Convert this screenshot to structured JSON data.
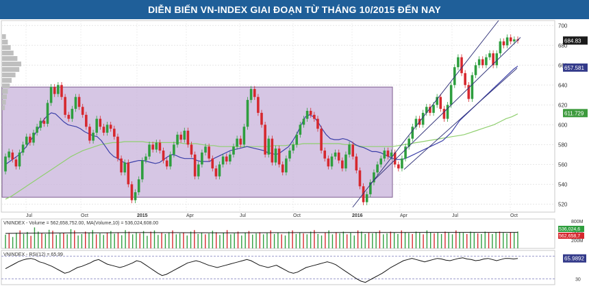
{
  "title": "DIỄN BIẾN VN-INDEX GIAI ĐOẠN TỪ THÁNG 10/2015 ĐẾN NAY",
  "colors": {
    "title_bg": "#1f5f99",
    "up": "#2e9e3e",
    "down": "#d6282e",
    "ma_fast": "#3b3fa8",
    "ma_slow": "#8fcf6e",
    "box_fill": "#cbb6dc",
    "channel": "#33357a",
    "price_badge": "#1b1b1b",
    "ma_badge": "#333a8a",
    "ma2_badge": "#3d9a3d"
  },
  "chart_data": [
    {
      "type": "candlestick",
      "x_tick_labels": [
        "Jul",
        "Oct",
        "2015",
        "Apr",
        "Jul",
        "Oct",
        "2016",
        "Apr",
        "Jul",
        "Oct"
      ],
      "y_tick_labels": [
        "520",
        "540",
        "560",
        "580",
        "600",
        "620",
        "640",
        "660",
        "680",
        "700"
      ],
      "ylim": [
        512,
        705
      ],
      "candles": [
        {
          "o": 553,
          "c": 568
        },
        {
          "o": 567,
          "c": 573
        },
        {
          "o": 572,
          "c": 565
        },
        {
          "o": 565,
          "c": 558
        },
        {
          "o": 558,
          "c": 572
        },
        {
          "o": 572,
          "c": 580
        },
        {
          "o": 580,
          "c": 588
        },
        {
          "o": 588,
          "c": 582
        },
        {
          "o": 582,
          "c": 592
        },
        {
          "o": 592,
          "c": 598
        },
        {
          "o": 597,
          "c": 604
        },
        {
          "o": 604,
          "c": 601
        },
        {
          "o": 601,
          "c": 622
        },
        {
          "o": 622,
          "c": 638
        },
        {
          "o": 638,
          "c": 631
        },
        {
          "o": 631,
          "c": 640
        },
        {
          "o": 640,
          "c": 628
        },
        {
          "o": 628,
          "c": 610
        },
        {
          "o": 610,
          "c": 606
        },
        {
          "o": 606,
          "c": 616
        },
        {
          "o": 616,
          "c": 628
        },
        {
          "o": 628,
          "c": 618
        },
        {
          "o": 618,
          "c": 610
        },
        {
          "o": 610,
          "c": 598
        },
        {
          "o": 598,
          "c": 584
        },
        {
          "o": 584,
          "c": 592
        },
        {
          "o": 592,
          "c": 606
        },
        {
          "o": 606,
          "c": 598
        },
        {
          "o": 598,
          "c": 592
        },
        {
          "o": 592,
          "c": 600
        },
        {
          "o": 600,
          "c": 596
        },
        {
          "o": 596,
          "c": 588
        },
        {
          "o": 588,
          "c": 566
        },
        {
          "o": 566,
          "c": 552
        },
        {
          "o": 552,
          "c": 562
        },
        {
          "o": 562,
          "c": 540
        },
        {
          "o": 540,
          "c": 524
        },
        {
          "o": 524,
          "c": 532
        },
        {
          "o": 532,
          "c": 545
        },
        {
          "o": 545,
          "c": 564
        },
        {
          "o": 564,
          "c": 568
        },
        {
          "o": 568,
          "c": 580
        },
        {
          "o": 580,
          "c": 575
        },
        {
          "o": 575,
          "c": 582
        },
        {
          "o": 582,
          "c": 574
        },
        {
          "o": 574,
          "c": 564
        },
        {
          "o": 564,
          "c": 558
        },
        {
          "o": 558,
          "c": 570
        },
        {
          "o": 570,
          "c": 580
        },
        {
          "o": 580,
          "c": 590
        },
        {
          "o": 590,
          "c": 585
        },
        {
          "o": 585,
          "c": 594
        },
        {
          "o": 594,
          "c": 580
        },
        {
          "o": 580,
          "c": 570
        },
        {
          "o": 570,
          "c": 548
        },
        {
          "o": 548,
          "c": 560
        },
        {
          "o": 560,
          "c": 572
        },
        {
          "o": 572,
          "c": 578
        },
        {
          "o": 578,
          "c": 566
        },
        {
          "o": 566,
          "c": 556
        },
        {
          "o": 556,
          "c": 548
        },
        {
          "o": 548,
          "c": 560
        },
        {
          "o": 560,
          "c": 568
        },
        {
          "o": 568,
          "c": 563
        },
        {
          "o": 563,
          "c": 570
        },
        {
          "o": 570,
          "c": 578
        },
        {
          "o": 578,
          "c": 586
        },
        {
          "o": 586,
          "c": 580
        },
        {
          "o": 580,
          "c": 598
        },
        {
          "o": 598,
          "c": 625
        },
        {
          "o": 625,
          "c": 636
        },
        {
          "o": 636,
          "c": 628
        },
        {
          "o": 628,
          "c": 612
        },
        {
          "o": 612,
          "c": 600
        },
        {
          "o": 600,
          "c": 570
        },
        {
          "o": 570,
          "c": 586
        },
        {
          "o": 586,
          "c": 562
        },
        {
          "o": 562,
          "c": 576
        },
        {
          "o": 576,
          "c": 560
        },
        {
          "o": 560,
          "c": 552
        },
        {
          "o": 552,
          "c": 566
        },
        {
          "o": 566,
          "c": 574
        },
        {
          "o": 574,
          "c": 580
        },
        {
          "o": 580,
          "c": 590
        },
        {
          "o": 590,
          "c": 600
        },
        {
          "o": 600,
          "c": 606
        },
        {
          "o": 606,
          "c": 614
        },
        {
          "o": 614,
          "c": 610
        },
        {
          "o": 610,
          "c": 606
        },
        {
          "o": 606,
          "c": 596
        },
        {
          "o": 596,
          "c": 574
        },
        {
          "o": 574,
          "c": 566
        },
        {
          "o": 566,
          "c": 558
        },
        {
          "o": 558,
          "c": 568
        },
        {
          "o": 568,
          "c": 572
        },
        {
          "o": 572,
          "c": 564
        },
        {
          "o": 564,
          "c": 556
        },
        {
          "o": 556,
          "c": 570
        },
        {
          "o": 570,
          "c": 580
        },
        {
          "o": 580,
          "c": 568
        },
        {
          "o": 568,
          "c": 554
        },
        {
          "o": 554,
          "c": 538
        },
        {
          "o": 538,
          "c": 522
        },
        {
          "o": 522,
          "c": 530
        },
        {
          "o": 530,
          "c": 542
        },
        {
          "o": 542,
          "c": 552
        },
        {
          "o": 552,
          "c": 560
        },
        {
          "o": 560,
          "c": 566
        },
        {
          "o": 566,
          "c": 574
        },
        {
          "o": 574,
          "c": 568
        },
        {
          "o": 568,
          "c": 572
        },
        {
          "o": 572,
          "c": 560
        },
        {
          "o": 560,
          "c": 556
        },
        {
          "o": 556,
          "c": 566
        },
        {
          "o": 566,
          "c": 578
        },
        {
          "o": 578,
          "c": 586
        },
        {
          "o": 586,
          "c": 598
        },
        {
          "o": 598,
          "c": 606
        },
        {
          "o": 606,
          "c": 600
        },
        {
          "o": 600,
          "c": 612
        },
        {
          "o": 612,
          "c": 618
        },
        {
          "o": 618,
          "c": 612
        },
        {
          "o": 612,
          "c": 620
        },
        {
          "o": 620,
          "c": 628
        },
        {
          "o": 628,
          "c": 616
        },
        {
          "o": 616,
          "c": 606
        },
        {
          "o": 606,
          "c": 620
        },
        {
          "o": 620,
          "c": 640
        },
        {
          "o": 640,
          "c": 658
        },
        {
          "o": 658,
          "c": 668
        },
        {
          "o": 668,
          "c": 652
        },
        {
          "o": 652,
          "c": 640
        },
        {
          "o": 640,
          "c": 626
        },
        {
          "o": 626,
          "c": 650
        },
        {
          "o": 650,
          "c": 660
        },
        {
          "o": 660,
          "c": 666
        },
        {
          "o": 666,
          "c": 660
        },
        {
          "o": 660,
          "c": 668
        },
        {
          "o": 668,
          "c": 672
        },
        {
          "o": 672,
          "c": 660
        },
        {
          "o": 660,
          "c": 672
        },
        {
          "o": 672,
          "c": 684
        },
        {
          "o": 684,
          "c": 680
        },
        {
          "o": 680,
          "c": 688
        },
        {
          "o": 688,
          "c": 684
        },
        {
          "o": 684,
          "c": 686
        },
        {
          "o": 686,
          "c": 684.83
        }
      ],
      "ma_fast": [
        560,
        563,
        566,
        569,
        573,
        578,
        584,
        590,
        597,
        604,
        609,
        612,
        611,
        607,
        603,
        600,
        599,
        598,
        596,
        593,
        591,
        589,
        588,
        584,
        578,
        572,
        568,
        566,
        563,
        561,
        562,
        563,
        564,
        564,
        563,
        562,
        561,
        562,
        565,
        568,
        570,
        569,
        567,
        566,
        566,
        566,
        564,
        563,
        563,
        563,
        566,
        568,
        570,
        572,
        574,
        575,
        576,
        577,
        578,
        577,
        576,
        575,
        574,
        572,
        571,
        570,
        572,
        575,
        578,
        584,
        591,
        600,
        608,
        610,
        608,
        603,
        596,
        590,
        586,
        585,
        585,
        586,
        585,
        583,
        580,
        578,
        577,
        575,
        573,
        573,
        572,
        570,
        568,
        566,
        565,
        565,
        566,
        568,
        570,
        572,
        574,
        576,
        578,
        580,
        582,
        584,
        588,
        592,
        598,
        604,
        608,
        612,
        616,
        620,
        624,
        628,
        632,
        636,
        640,
        644,
        648,
        652,
        656,
        659
      ],
      "ma_slow": [
        525,
        528,
        532,
        536,
        540,
        544,
        548,
        552,
        556,
        560,
        564,
        568,
        571,
        574,
        576,
        578,
        580,
        581,
        582,
        582,
        583,
        583,
        583,
        583,
        582,
        582,
        582,
        582,
        582,
        582,
        581,
        581,
        581,
        580,
        579,
        579,
        578,
        578,
        578,
        578,
        578,
        578,
        578,
        578,
        578,
        579,
        579,
        579,
        580,
        580,
        581,
        581,
        581,
        581,
        581,
        581,
        581,
        580,
        580,
        579,
        578,
        578,
        578,
        578,
        578,
        578,
        579,
        580,
        581,
        582,
        583,
        584,
        585,
        586,
        587,
        588,
        589,
        590,
        592,
        594,
        596,
        598,
        600,
        603,
        606,
        608,
        611
      ],
      "badges": {
        "price": "684.83",
        "ma_fast": "657.581",
        "ma_slow": "611.729"
      }
    },
    {
      "type": "bar",
      "label": "VNINDEX - Volume = 562,658,752.00, MA(Volume,10) = 536,024,608.00",
      "y_tick_labels": [
        "800M",
        "400M",
        "200M"
      ],
      "ylim": [
        0,
        800
      ],
      "badges": [
        "536,024,6",
        "562,658,7"
      ],
      "values": [
        460,
        510,
        380,
        520,
        600,
        480,
        550,
        420,
        700,
        560,
        510,
        480,
        620,
        590,
        450,
        500,
        520,
        470,
        640,
        600,
        430,
        480,
        560,
        520,
        610,
        470,
        500,
        450,
        530,
        580,
        490,
        520,
        440,
        610,
        560,
        470,
        530,
        500,
        580,
        420,
        560,
        600,
        450,
        520,
        480,
        540,
        600,
        470,
        500,
        520,
        430,
        560,
        610,
        480,
        520,
        470,
        500,
        590,
        540,
        450,
        520,
        610,
        470,
        500,
        560,
        430,
        520,
        580,
        460,
        500,
        540,
        470,
        510,
        600,
        480,
        520,
        470,
        430,
        560,
        600,
        480,
        520,
        500,
        470,
        560,
        610,
        480,
        430,
        520,
        600,
        470,
        540,
        500,
        560,
        470,
        520,
        430,
        600,
        560,
        480,
        520,
        500,
        540,
        600,
        470,
        500,
        560,
        520,
        480,
        600,
        540,
        510,
        480,
        560,
        520,
        470,
        600,
        540,
        500,
        520,
        480,
        560,
        520,
        470,
        600,
        540,
        520,
        480,
        560,
        520,
        500,
        480,
        560,
        520,
        480,
        540,
        560,
        520,
        500,
        540,
        520,
        563
      ],
      "ma": [
        500,
        505,
        510,
        512,
        515,
        518,
        520,
        522,
        525,
        528,
        527,
        526,
        525,
        524,
        523,
        522,
        522,
        523,
        524,
        525,
        526,
        527,
        528,
        529,
        530,
        531,
        532,
        533,
        533,
        534,
        535,
        535,
        536,
        536,
        536,
        536,
        536
      ]
    },
    {
      "type": "line",
      "label": "VNINDEX - RSI(12) = 65.99",
      "y_tick_labels": [
        "70",
        "30"
      ],
      "ylim": [
        20,
        80
      ],
      "badge": "65.9892",
      "values": [
        48,
        52,
        56,
        60,
        63,
        65,
        66,
        64,
        60,
        58,
        55,
        52,
        48,
        44,
        40,
        42,
        46,
        50,
        52,
        55,
        58,
        62,
        64,
        60,
        56,
        54,
        52,
        50,
        52,
        55,
        58,
        62,
        60,
        55,
        50,
        45,
        40,
        36,
        38,
        42,
        46,
        50,
        54,
        58,
        60,
        62,
        60,
        57,
        54,
        52,
        50,
        52,
        54,
        56,
        58,
        60,
        62,
        64,
        62,
        58,
        54,
        52,
        50,
        52,
        54,
        50,
        46,
        42,
        40,
        42,
        46,
        50,
        52,
        54,
        56,
        58,
        60,
        58,
        55,
        50,
        45,
        40,
        35,
        30,
        26,
        24,
        28,
        32,
        36,
        40,
        45,
        50,
        54,
        58,
        62,
        64,
        66,
        64,
        62,
        60,
        62,
        64,
        66,
        65,
        63,
        62,
        64,
        66,
        67,
        65,
        64,
        62,
        63,
        65,
        66,
        64,
        62,
        64,
        66,
        66,
        65,
        65.99
      ]
    }
  ]
}
